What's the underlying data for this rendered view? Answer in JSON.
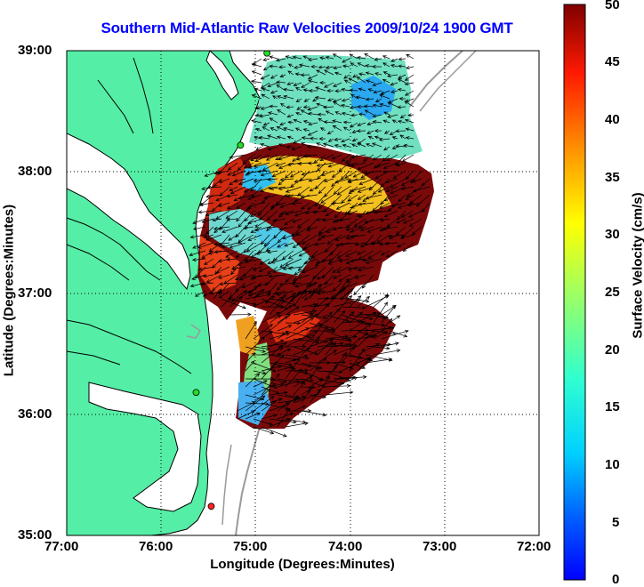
{
  "title": "Southern Mid-Atlantic Raw Velocities 2009/10/24 1900 GMT",
  "axes": {
    "xlabel": "Longitude (Degrees:Minutes)",
    "ylabel": "Latitude (Degrees:Minutes)",
    "x_ticks": [
      "77:00",
      "76:00",
      "75:00",
      "74:00",
      "73:00",
      "72:00"
    ],
    "y_ticks": [
      "39:00",
      "38:00",
      "37:00",
      "36:00",
      "35:00"
    ],
    "xlim": [
      -77,
      -72
    ],
    "ylim": [
      35,
      39
    ],
    "grid": true
  },
  "colorbar": {
    "label": "Surface Velocity (cm/s)",
    "ticks": [
      "50",
      "45",
      "40",
      "35",
      "30",
      "25",
      "20",
      "15",
      "10",
      "5",
      "0"
    ],
    "range": [
      0,
      50
    ]
  },
  "colors": {
    "land": "#55eea6",
    "water": "#ffffff",
    "coastline": "#000000",
    "bathymetry": "#9a9a9a",
    "title": "#0000ff",
    "station": "#22dd22",
    "station_red": "#ff2222"
  },
  "stations": [
    {
      "lon": -74.88,
      "lat": 38.98,
      "color": "station"
    },
    {
      "lon": -75.16,
      "lat": 38.22,
      "color": "station"
    },
    {
      "lon": -75.63,
      "lat": 36.18,
      "color": "station"
    },
    {
      "lon": -75.47,
      "lat": 35.24,
      "color": "station_red"
    }
  ]
}
